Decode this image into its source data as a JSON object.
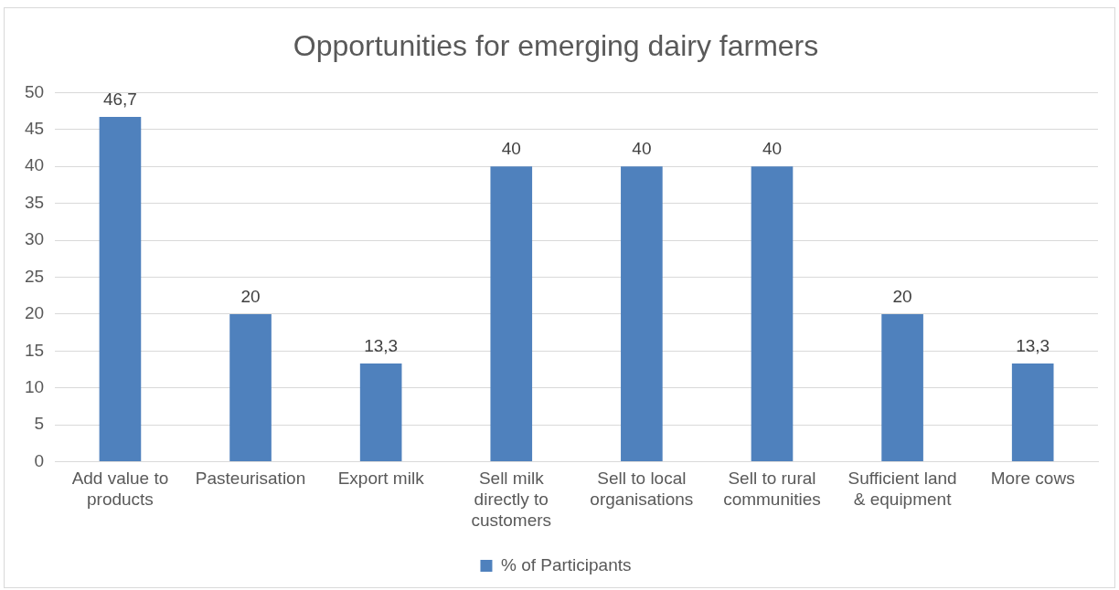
{
  "chart_data": {
    "type": "bar",
    "title": "Opportunities for emerging dairy farmers",
    "categories": [
      "Add value to products",
      "Pasteurisation",
      "Export milk",
      "Sell milk directly to customers",
      "Sell to local organisations",
      "Sell to rural communities",
      "Sufficient land & equipment",
      "More cows"
    ],
    "series": [
      {
        "name": "% of Participants",
        "color": "#4f81bd",
        "values": [
          46.7,
          20,
          13.3,
          40,
          40,
          40,
          20,
          13.3
        ],
        "value_labels": [
          "46,7",
          "20",
          "13,3",
          "40",
          "40",
          "40",
          "20",
          "13,3"
        ]
      }
    ],
    "ylim": [
      0,
      50
    ],
    "yticks": [
      0,
      5,
      10,
      15,
      20,
      25,
      30,
      35,
      40,
      45,
      50
    ],
    "grid": "y",
    "legend": "bottom"
  }
}
